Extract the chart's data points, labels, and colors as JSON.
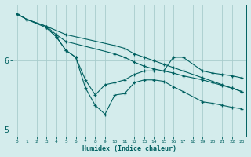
{
  "xlabel": "Humidex (Indice chaleur)",
  "bg_color": "#d4ecec",
  "grid_color": "#a8cccc",
  "line_color": "#006060",
  "xlim": [
    -0.5,
    23.5
  ],
  "ylim": [
    4.9,
    6.82
  ],
  "yticks": [
    5,
    6
  ],
  "xticks": [
    0,
    1,
    2,
    3,
    4,
    5,
    6,
    7,
    8,
    9,
    10,
    11,
    12,
    13,
    14,
    15,
    16,
    17,
    18,
    19,
    20,
    21,
    22,
    23
  ],
  "lines": [
    {
      "x": [
        0,
        1,
        3,
        5,
        10,
        11,
        12,
        13,
        14,
        15,
        16,
        17,
        19,
        20,
        21,
        22,
        23
      ],
      "y": [
        6.68,
        6.6,
        6.5,
        6.38,
        6.22,
        6.18,
        6.1,
        6.05,
        6.0,
        5.95,
        5.9,
        5.85,
        5.75,
        5.7,
        5.65,
        5.6,
        5.55
      ]
    },
    {
      "x": [
        0,
        1,
        3,
        4,
        5,
        10,
        11,
        12,
        13,
        14,
        15,
        16,
        17,
        19,
        20,
        21,
        22,
        23
      ],
      "y": [
        6.68,
        6.6,
        6.5,
        6.38,
        6.28,
        6.1,
        6.05,
        5.98,
        5.92,
        5.88,
        5.85,
        5.82,
        5.78,
        5.72,
        5.68,
        5.64,
        5.6,
        5.55
      ]
    },
    {
      "x": [
        0,
        1,
        3,
        4,
        5,
        6,
        7,
        8,
        9,
        10,
        11,
        12,
        13,
        14,
        15,
        16,
        17,
        19,
        20,
        21,
        22,
        23
      ],
      "y": [
        6.68,
        6.6,
        6.48,
        6.35,
        6.15,
        6.05,
        5.72,
        5.5,
        5.65,
        5.68,
        5.72,
        5.8,
        5.85,
        5.85,
        5.85,
        6.05,
        6.05,
        5.85,
        5.82,
        5.8,
        5.78,
        5.75
      ]
    },
    {
      "x": [
        3,
        4,
        5,
        6,
        7,
        8,
        9,
        10,
        11,
        12,
        13,
        14,
        15,
        16,
        17,
        19,
        20,
        21,
        22,
        23
      ],
      "y": [
        6.48,
        6.35,
        6.15,
        6.05,
        5.6,
        5.35,
        5.22,
        5.5,
        5.52,
        5.68,
        5.72,
        5.72,
        5.7,
        5.62,
        5.55,
        5.4,
        5.38,
        5.35,
        5.32,
        5.3
      ]
    }
  ]
}
